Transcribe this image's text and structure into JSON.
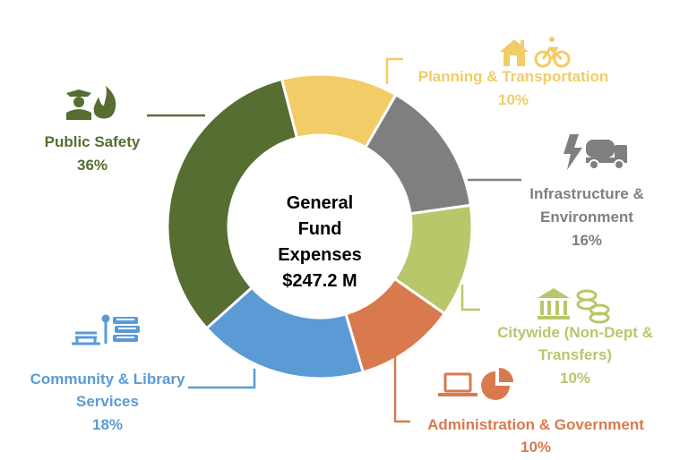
{
  "chart_data": {
    "type": "pie",
    "subtype": "donut",
    "center": {
      "lines": [
        "General",
        "Fund",
        "Expenses",
        "$247.2 M"
      ]
    },
    "slices": [
      {
        "key": "planning",
        "label_lines": [
          "Planning & Transportation"
        ],
        "value_text": "10%",
        "value": 10,
        "color": "#F2CC66",
        "icons": [
          "house-icon",
          "bicycle-icon"
        ]
      },
      {
        "key": "infrastructure",
        "label_lines": [
          "Infrastructure &",
          "Environment"
        ],
        "value_text": "16%",
        "value": 16,
        "color": "#7F7F7F",
        "icons": [
          "lightning-icon",
          "cement-truck-icon"
        ]
      },
      {
        "key": "citywide",
        "label_lines": [
          "Citywide (Non-Dept &",
          "Transfers)"
        ],
        "value_text": "10%",
        "value": 10,
        "color": "#B9C66A",
        "icons": [
          "bank-building-icon",
          "coins-icon"
        ]
      },
      {
        "key": "administration",
        "label_lines": [
          "Administration & Government"
        ],
        "value_text": "10%",
        "value": 10,
        "color": "#D97A4E",
        "icons": [
          "laptop-icon",
          "pie-chart-icon"
        ]
      },
      {
        "key": "community",
        "label_lines": [
          "Community & Library",
          "Services"
        ],
        "value_text": "18%",
        "value": 18,
        "color": "#5B9BD5",
        "icons": [
          "park-bench-icon",
          "books-icon"
        ]
      },
      {
        "key": "public_safety",
        "label_lines": [
          "Public Safety"
        ],
        "value_text": "36%",
        "value": 36,
        "color": "#566E31",
        "icons": [
          "police-officer-icon",
          "fire-icon"
        ]
      }
    ]
  }
}
